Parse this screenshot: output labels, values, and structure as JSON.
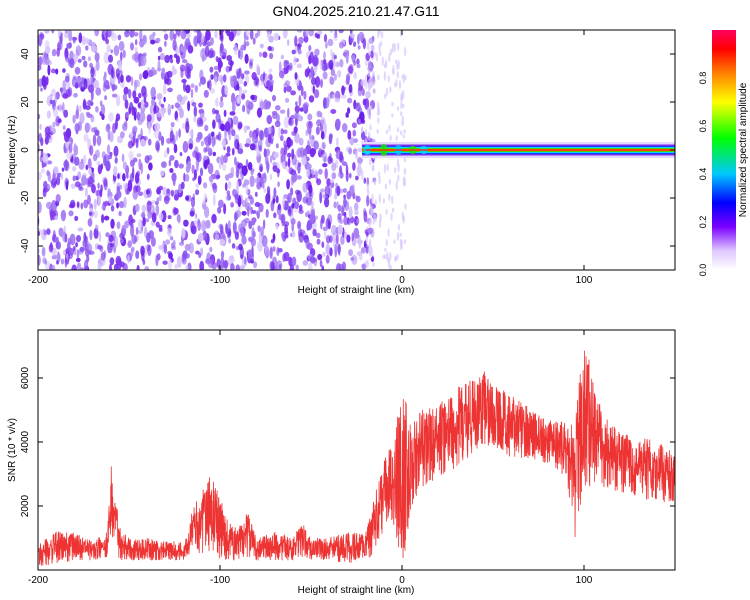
{
  "title": "GN04.2025.210.21.47.G11",
  "chart_data": [
    {
      "type": "heatmap",
      "xlabel": "Height of straight line (km)",
      "ylabel": "Frequency (Hz)",
      "xlim": [
        -200,
        150
      ],
      "ylim": [
        -50,
        50
      ],
      "xticks": [
        -200,
        -100,
        0,
        100
      ],
      "yticks": [
        -40,
        -20,
        0,
        20,
        40
      ],
      "colorbar": {
        "label": "Normalized spectral amplitude",
        "range": [
          0,
          1
        ],
        "ticks": [
          "0.0",
          "0.2",
          "0.4",
          "0.6",
          "0.8"
        ]
      },
      "features": {
        "noise_region_x": [
          -200,
          -15
        ],
        "signal_x": [
          -22,
          150
        ],
        "signal_frequency_hz": 0
      }
    },
    {
      "type": "line",
      "xlabel": "Height of straight line (km)",
      "ylabel": "SNR (10 * v/v)",
      "xlim": [
        -200,
        150
      ],
      "ylim": [
        0,
        7500
      ],
      "xticks": [
        -200,
        -100,
        0,
        100
      ],
      "yticks": [
        2000,
        4000,
        6000
      ],
      "series": [
        {
          "color": "#ee3333",
          "envelope": {
            "x": [
              -200,
              -190,
              -180,
              -170,
              -162,
              -160,
              -155,
              -150,
              -140,
              -130,
              -120,
              -115,
              -110,
              -105,
              -100,
              -95,
              -90,
              -85,
              -80,
              -70,
              -60,
              -55,
              -50,
              -40,
              -30,
              -20,
              -15,
              -10,
              -5,
              0,
              5,
              10,
              20,
              30,
              40,
              45,
              50,
              60,
              70,
              80,
              90,
              95,
              100,
              110,
              120,
              130,
              140,
              150
            ],
            "min": [
              100,
              200,
              300,
              300,
              400,
              1000,
              300,
              300,
              300,
              300,
              300,
              600,
              500,
              600,
              300,
              300,
              300,
              400,
              300,
              300,
              300,
              400,
              300,
              300,
              200,
              300,
              500,
              1200,
              1500,
              0,
              1800,
              2500,
              2900,
              3200,
              3700,
              3800,
              3900,
              3500,
              3500,
              3300,
              2900,
              1000,
              2600,
              2600,
              2400,
              2200,
              2200,
              2000
            ],
            "max": [
              800,
              1200,
              1200,
              900,
              1200,
              3400,
              1400,
              1000,
              1000,
              900,
              900,
              1900,
              2500,
              3000,
              2300,
              1500,
              1300,
              1900,
              1000,
              1200,
              1000,
              1500,
              1000,
              1000,
              1200,
              1200,
              2300,
              3500,
              4000,
              6000,
              4500,
              5000,
              5200,
              5700,
              6000,
              6400,
              5800,
              5500,
              5100,
              4700,
              4600,
              4500,
              7400,
              4900,
              4300,
              4200,
              4000,
              3700
            ]
          }
        }
      ]
    }
  ]
}
